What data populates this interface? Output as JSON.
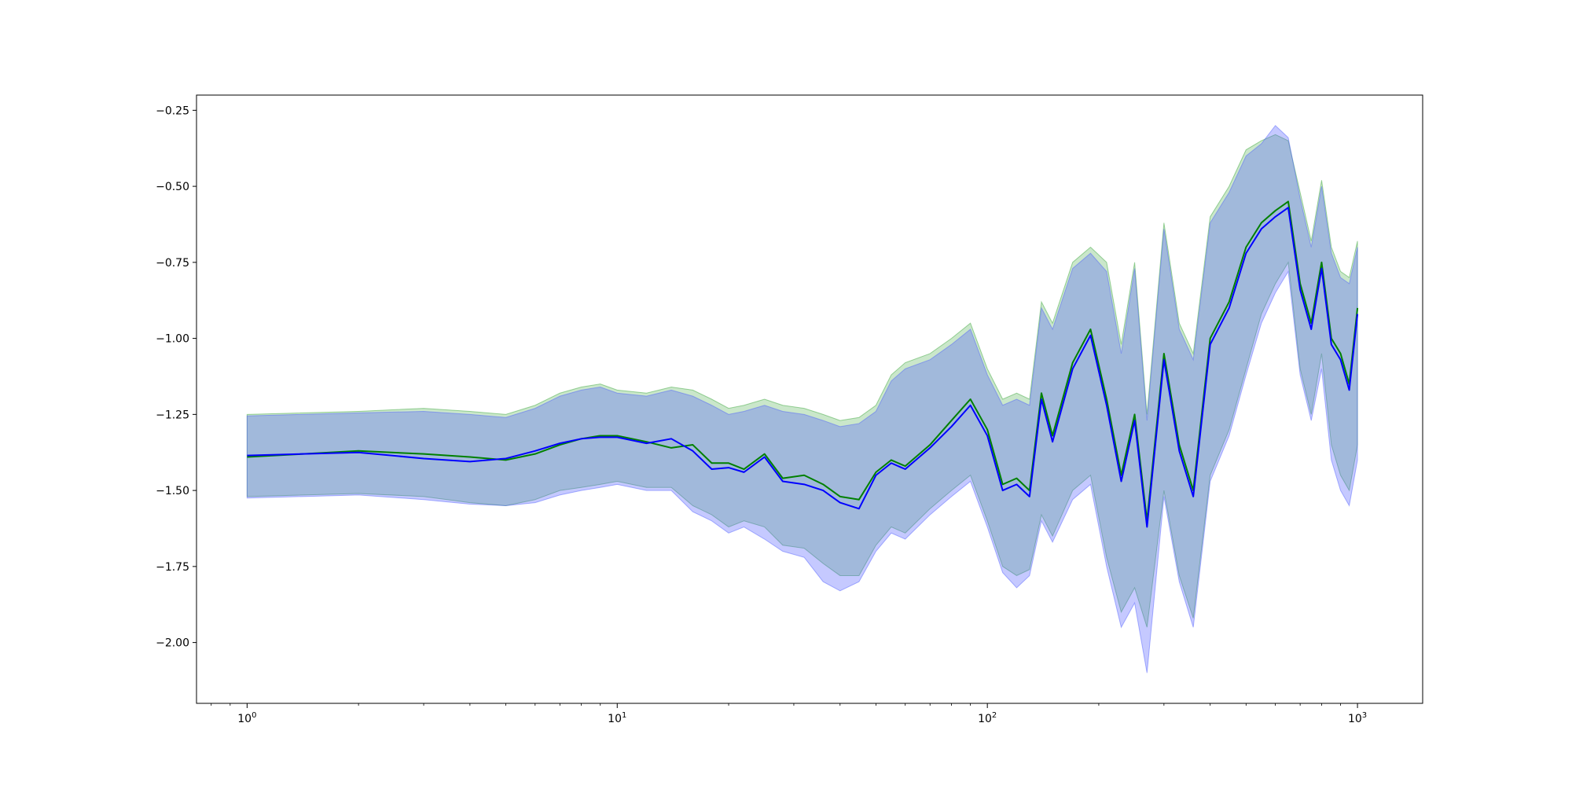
{
  "chart_data": {
    "type": "line",
    "title": "",
    "xlabel": "",
    "ylabel": "",
    "xscale": "log",
    "xlim": [
      0.73,
      1500
    ],
    "ylim": [
      -2.2,
      -0.2
    ],
    "grid": false,
    "legend": "none",
    "x_ticks": [
      {
        "value": 1,
        "base": "10",
        "exp": "0"
      },
      {
        "value": 10,
        "base": "10",
        "exp": "1"
      },
      {
        "value": 100,
        "base": "10",
        "exp": "2"
      },
      {
        "value": 1000,
        "base": "10",
        "exp": "3"
      }
    ],
    "y_ticks": [
      {
        "value": -0.25,
        "label": "−0.25"
      },
      {
        "value": -0.5,
        "label": "−0.50"
      },
      {
        "value": -0.75,
        "label": "−0.75"
      },
      {
        "value": -1.0,
        "label": "−1.00"
      },
      {
        "value": -1.25,
        "label": "−1.25"
      },
      {
        "value": -1.5,
        "label": "−1.50"
      },
      {
        "value": -1.75,
        "label": "−1.75"
      },
      {
        "value": -2.0,
        "label": "−2.00"
      }
    ],
    "series": [
      {
        "color": "#008000",
        "band_color": "#2ca02c",
        "band_opacity": 0.25,
        "x": [
          1,
          2,
          3,
          4,
          5,
          6,
          7,
          8,
          9,
          10,
          12,
          14,
          16,
          18,
          20,
          22,
          25,
          28,
          32,
          36,
          40,
          45,
          50,
          55,
          60,
          70,
          80,
          90,
          100,
          110,
          120,
          130,
          140,
          150,
          170,
          190,
          210,
          230,
          250,
          270,
          300,
          330,
          360,
          400,
          450,
          500,
          550,
          600,
          650,
          700,
          750,
          800,
          850,
          900,
          950,
          1000
        ],
        "y": [
          -1.39,
          -1.37,
          -1.38,
          -1.39,
          -1.4,
          -1.38,
          -1.35,
          -1.33,
          -1.32,
          -1.32,
          -1.34,
          -1.36,
          -1.35,
          -1.41,
          -1.41,
          -1.43,
          -1.38,
          -1.46,
          -1.45,
          -1.48,
          -1.52,
          -1.53,
          -1.44,
          -1.4,
          -1.42,
          -1.35,
          -1.27,
          -1.2,
          -1.3,
          -1.48,
          -1.46,
          -1.5,
          -1.18,
          -1.32,
          -1.08,
          -0.97,
          -1.2,
          -1.45,
          -1.25,
          -1.6,
          -1.05,
          -1.35,
          -1.5,
          -1.0,
          -0.88,
          -0.7,
          -0.62,
          -0.58,
          -0.55,
          -0.82,
          -0.95,
          -0.75,
          -1.0,
          -1.05,
          -1.15,
          -0.9
        ],
        "lower": [
          -1.52,
          -1.51,
          -1.52,
          -1.54,
          -1.55,
          -1.53,
          -1.5,
          -1.49,
          -1.48,
          -1.47,
          -1.49,
          -1.49,
          -1.55,
          -1.58,
          -1.62,
          -1.6,
          -1.62,
          -1.68,
          -1.69,
          -1.74,
          -1.78,
          -1.78,
          -1.68,
          -1.62,
          -1.64,
          -1.56,
          -1.5,
          -1.45,
          -1.6,
          -1.75,
          -1.78,
          -1.76,
          -1.58,
          -1.65,
          -1.5,
          -1.45,
          -1.72,
          -1.9,
          -1.82,
          -1.95,
          -1.5,
          -1.78,
          -1.92,
          -1.45,
          -1.3,
          -1.1,
          -0.92,
          -0.82,
          -0.75,
          -1.1,
          -1.25,
          -1.05,
          -1.35,
          -1.45,
          -1.5,
          -1.35
        ],
        "upper": [
          -1.25,
          -1.24,
          -1.23,
          -1.24,
          -1.25,
          -1.22,
          -1.18,
          -1.16,
          -1.15,
          -1.17,
          -1.18,
          -1.16,
          -1.17,
          -1.2,
          -1.23,
          -1.22,
          -1.2,
          -1.22,
          -1.23,
          -1.25,
          -1.27,
          -1.26,
          -1.22,
          -1.12,
          -1.08,
          -1.05,
          -1.0,
          -0.95,
          -1.1,
          -1.2,
          -1.18,
          -1.2,
          -0.88,
          -0.95,
          -0.75,
          -0.7,
          -0.75,
          -1.02,
          -0.75,
          -1.25,
          -0.62,
          -0.95,
          -1.05,
          -0.6,
          -0.5,
          -0.38,
          -0.35,
          -0.33,
          -0.35,
          -0.52,
          -0.68,
          -0.48,
          -0.7,
          -0.78,
          -0.8,
          -0.68
        ]
      },
      {
        "color": "#0000ff",
        "band_color": "#4a58ff",
        "band_opacity": 0.32,
        "x": [
          1,
          2,
          3,
          4,
          5,
          6,
          7,
          8,
          9,
          10,
          12,
          14,
          16,
          18,
          20,
          22,
          25,
          28,
          32,
          36,
          40,
          45,
          50,
          55,
          60,
          70,
          80,
          90,
          100,
          110,
          120,
          130,
          140,
          150,
          170,
          190,
          210,
          230,
          250,
          270,
          300,
          330,
          360,
          400,
          450,
          500,
          550,
          600,
          650,
          700,
          750,
          800,
          850,
          900,
          950,
          1000
        ],
        "y": [
          -1.385,
          -1.375,
          -1.395,
          -1.405,
          -1.395,
          -1.37,
          -1.345,
          -1.33,
          -1.325,
          -1.325,
          -1.345,
          -1.33,
          -1.37,
          -1.43,
          -1.425,
          -1.44,
          -1.39,
          -1.47,
          -1.48,
          -1.5,
          -1.54,
          -1.56,
          -1.45,
          -1.41,
          -1.43,
          -1.36,
          -1.29,
          -1.22,
          -1.32,
          -1.5,
          -1.48,
          -1.52,
          -1.2,
          -1.34,
          -1.1,
          -0.99,
          -1.22,
          -1.47,
          -1.27,
          -1.62,
          -1.07,
          -1.37,
          -1.52,
          -1.02,
          -0.9,
          -0.72,
          -0.64,
          -0.6,
          -0.57,
          -0.84,
          -0.97,
          -0.77,
          -1.02,
          -1.07,
          -1.17,
          -0.92
        ],
        "lower": [
          -1.525,
          -1.515,
          -1.53,
          -1.545,
          -1.55,
          -1.54,
          -1.515,
          -1.5,
          -1.49,
          -1.48,
          -1.5,
          -1.5,
          -1.57,
          -1.6,
          -1.64,
          -1.62,
          -1.66,
          -1.7,
          -1.72,
          -1.8,
          -1.83,
          -1.8,
          -1.7,
          -1.64,
          -1.66,
          -1.58,
          -1.52,
          -1.47,
          -1.62,
          -1.77,
          -1.82,
          -1.78,
          -1.6,
          -1.67,
          -1.53,
          -1.48,
          -1.75,
          -1.95,
          -1.87,
          -2.1,
          -1.52,
          -1.8,
          -1.95,
          -1.47,
          -1.32,
          -1.12,
          -0.95,
          -0.85,
          -0.78,
          -1.12,
          -1.27,
          -1.1,
          -1.4,
          -1.5,
          -1.55,
          -1.4
        ],
        "upper": [
          -1.255,
          -1.245,
          -1.24,
          -1.25,
          -1.26,
          -1.23,
          -1.19,
          -1.17,
          -1.16,
          -1.18,
          -1.19,
          -1.17,
          -1.19,
          -1.22,
          -1.25,
          -1.24,
          -1.22,
          -1.24,
          -1.25,
          -1.27,
          -1.29,
          -1.28,
          -1.24,
          -1.14,
          -1.1,
          -1.07,
          -1.02,
          -0.97,
          -1.12,
          -1.22,
          -1.2,
          -1.22,
          -0.9,
          -0.97,
          -0.77,
          -0.72,
          -0.78,
          -1.05,
          -0.77,
          -1.27,
          -0.64,
          -0.97,
          -1.07,
          -0.62,
          -0.52,
          -0.4,
          -0.36,
          -0.3,
          -0.34,
          -0.54,
          -0.7,
          -0.5,
          -0.72,
          -0.8,
          -0.82,
          -0.7
        ]
      }
    ]
  }
}
